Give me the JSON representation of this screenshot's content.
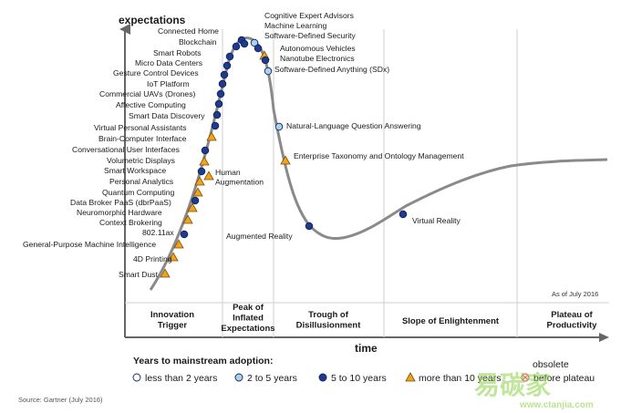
{
  "axes": {
    "y_title": "expectations",
    "x_title": "time"
  },
  "as_of": "As of July 2016",
  "source": "Source: Gartner (July 2016)",
  "phases": [
    {
      "lines": [
        "Innovation",
        "Trigger"
      ]
    },
    {
      "lines": [
        "Peak of",
        "Inflated",
        "Expectations"
      ]
    },
    {
      "lines": [
        "Trough of",
        "Disillusionment"
      ]
    },
    {
      "lines": [
        "Slope of Enlightenment"
      ]
    },
    {
      "lines": [
        "Plateau of",
        "Productivity"
      ]
    }
  ],
  "legend": {
    "title": "Years to mainstream adoption:",
    "items": [
      {
        "label": "less than 2 years",
        "marker": "circle",
        "color": "#ffffff"
      },
      {
        "label": "2 to 5 years",
        "marker": "circle",
        "color": "#a9d3ea"
      },
      {
        "label": "5 to 10 years",
        "marker": "circle",
        "color": "#1f3b8f"
      },
      {
        "label": "more than 10 years",
        "marker": "triangle",
        "color": "#f2a31d"
      },
      {
        "label": "before plateau",
        "marker": "circle-x",
        "color": "#e06666",
        "top_label": "obsolete"
      }
    ]
  },
  "technologies": [
    {
      "label": "Smart Dust",
      "marker": "triangle"
    },
    {
      "label": "4D Printing",
      "marker": "triangle"
    },
    {
      "label": "General-Purpose Machine Intelligence",
      "marker": "triangle"
    },
    {
      "label": "802.11ax",
      "marker": "circle-dark"
    },
    {
      "label": "Context Brokering",
      "marker": "triangle"
    },
    {
      "label": "Neuromorphic Hardware",
      "marker": "triangle"
    },
    {
      "label": "Data Broker PaaS (dbrPaaS)",
      "marker": "circle-dark"
    },
    {
      "label": "Quantum Computing",
      "marker": "triangle"
    },
    {
      "label": "Personal Analytics",
      "marker": "triangle"
    },
    {
      "label": "Smart Workspace",
      "marker": "circle-dark"
    },
    {
      "label": "Volumetric Displays",
      "marker": "triangle"
    },
    {
      "label": "Conversational User Interfaces",
      "marker": "circle-dark"
    },
    {
      "label": "Brain-Computer Interface",
      "marker": "triangle"
    },
    {
      "label": "Virtual Personal Assistants",
      "marker": "circle-dark"
    },
    {
      "label": "Smart Data Discovery",
      "marker": "circle-dark"
    },
    {
      "label": "Affective Computing",
      "marker": "circle-dark"
    },
    {
      "label": "Commercial UAVs (Drones)",
      "marker": "circle-dark"
    },
    {
      "label": "IoT Platform",
      "marker": "circle-dark"
    },
    {
      "label": "Gesture Control Devices",
      "marker": "circle-dark"
    },
    {
      "label": "Micro Data Centers",
      "marker": "circle-dark"
    },
    {
      "label": "Smart Robots",
      "marker": "circle-dark"
    },
    {
      "label": "Blockchain",
      "marker": "circle-dark"
    },
    {
      "label": "Connected Home",
      "marker": "circle-dark"
    },
    {
      "label": "Human Augmentation",
      "marker": "triangle"
    },
    {
      "label": "Cognitive Expert Advisors",
      "marker": "circle-dark"
    },
    {
      "label": "Machine Learning",
      "marker": "circle-light"
    },
    {
      "label": "Software-Defined Security",
      "marker": "circle-dark"
    },
    {
      "label": "Autonomous Vehicles",
      "marker": "triangle"
    },
    {
      "label": "Nanotube Electronics",
      "marker": "circle-dark"
    },
    {
      "label": "Software-Defined Anything (SDx)",
      "marker": "circle-light"
    },
    {
      "label": "Natural-Language Question Answering",
      "marker": "circle-light"
    },
    {
      "label": "Enterprise Taxonomy and Ontology Management",
      "marker": "triangle"
    },
    {
      "label": "Augmented Reality",
      "marker": "circle-dark"
    },
    {
      "label": "Virtual Reality",
      "marker": "circle-dark"
    }
  ],
  "watermark": {
    "brand": "易碳家",
    "url": "www.ctanjia.com"
  }
}
